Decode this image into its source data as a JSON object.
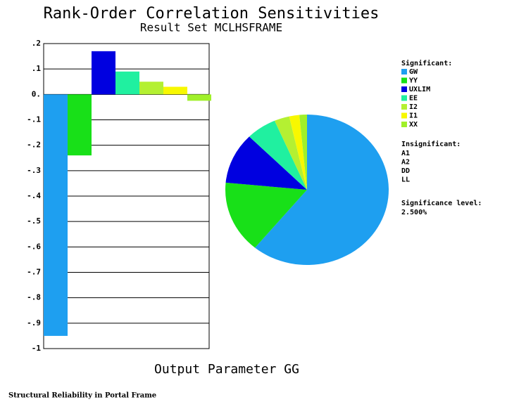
{
  "chart_data": [
    {
      "type": "bar",
      "title": "Rank-Order Correlation Sensitivities",
      "subtitle": "Result Set MCLHSFRAME",
      "x_label": "Output Parameter GG",
      "categories": [
        "GW",
        "YY",
        "UXLIM",
        "EE",
        "I2",
        "I1",
        "XX"
      ],
      "values": [
        -0.95,
        -0.24,
        0.17,
        0.09,
        0.05,
        0.03,
        -0.025
      ],
      "colors": [
        "#1e9ff0",
        "#18e018",
        "#0000e0",
        "#20f0a0",
        "#b4f032",
        "#f8f800",
        "#a0f02a"
      ],
      "ylim": [
        -1,
        0.2
      ],
      "yticks": [
        {
          "value": 0.2,
          "label": ".2"
        },
        {
          "value": 0.1,
          "label": ".1"
        },
        {
          "value": 0,
          "label": "0."
        },
        {
          "value": -0.1,
          "label": "-.1"
        },
        {
          "value": -0.2,
          "label": "-.2"
        },
        {
          "value": -0.3,
          "label": "-.3"
        },
        {
          "value": -0.4,
          "label": "-.4"
        },
        {
          "value": -0.5,
          "label": "-.5"
        },
        {
          "value": -0.6,
          "label": "-.6"
        },
        {
          "value": -0.7,
          "label": "-.7"
        },
        {
          "value": -0.8,
          "label": "-.8"
        },
        {
          "value": -0.9,
          "label": "-.9"
        },
        {
          "value": -1,
          "label": "-1"
        }
      ],
      "grid": true
    },
    {
      "type": "pie",
      "categories": [
        "GW",
        "YY",
        "UXLIM",
        "EE",
        "I2",
        "I1",
        "XX"
      ],
      "values": [
        61,
        15.5,
        11,
        6,
        3,
        2,
        1.5
      ],
      "colors": [
        "#1e9ff0",
        "#18e018",
        "#0000e0",
        "#20f0a0",
        "#b4f032",
        "#f8f800",
        "#a0f02a"
      ],
      "legend": {
        "significant_label": "Significant:",
        "insignificant_label": "Insignificant:",
        "insignificant": [
          "A1",
          "A2",
          "DD",
          "LL"
        ],
        "significance_level_label": "Significance level:",
        "significance_level": "2.500%"
      }
    }
  ],
  "footer": "Structural Reliability in Portal Frame"
}
